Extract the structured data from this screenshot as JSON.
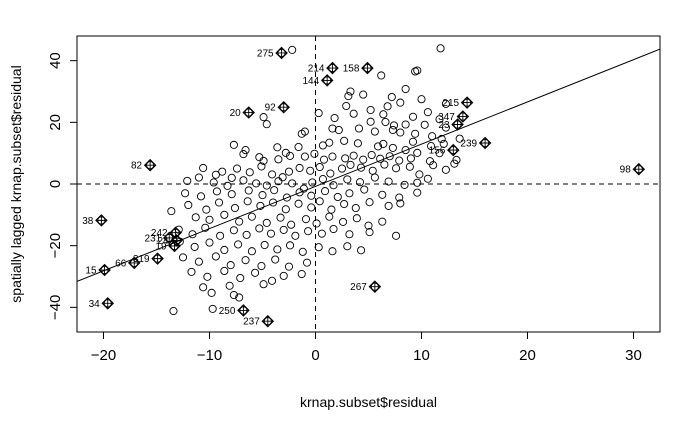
{
  "chart_data": {
    "type": "scatter",
    "title": "",
    "xlabel": "krnap.subset$residual",
    "ylabel": "spatially lagged krnap.subset$residual",
    "xlim": [
      -22.5,
      32.5
    ],
    "ylim": [
      -48,
      48
    ],
    "x_ticks": [
      -20,
      -10,
      0,
      10,
      20,
      30
    ],
    "y_ticks": [
      -40,
      -20,
      0,
      20,
      40
    ],
    "grid": false,
    "legend": "none",
    "reference_lines": {
      "vertical_x": 0,
      "horizontal_y": 0,
      "style": "dashed"
    },
    "regression_line": {
      "slope": 1.37,
      "intercept": -0.77
    },
    "labeled_points": [
      {
        "label": "275",
        "x": -3.2,
        "y": 42.5
      },
      {
        "label": "214",
        "x": 1.6,
        "y": 37.6
      },
      {
        "label": "158",
        "x": 4.9,
        "y": 37.6
      },
      {
        "label": "144",
        "x": 1.1,
        "y": 33.6
      },
      {
        "label": "20",
        "x": -6.3,
        "y": 23.2
      },
      {
        "label": "92",
        "x": -3.0,
        "y": 24.9
      },
      {
        "label": "215",
        "x": 14.3,
        "y": 26.4
      },
      {
        "label": "347",
        "x": 13.9,
        "y": 21.9
      },
      {
        "label": "23",
        "x": 13.4,
        "y": 19.3
      },
      {
        "label": "156",
        "x": 13.0,
        "y": 11.0
      },
      {
        "label": "239",
        "x": 16.0,
        "y": 13.3
      },
      {
        "label": "98",
        "x": 30.5,
        "y": 4.8
      },
      {
        "label": "82",
        "x": -15.6,
        "y": 6.1
      },
      {
        "label": "38",
        "x": -20.2,
        "y": -11.8
      },
      {
        "label": "242",
        "x": -13.2,
        "y": -15.8
      },
      {
        "label": "231",
        "x": -13.8,
        "y": -17.5
      },
      {
        "label": "24",
        "x": -13.1,
        "y": -18.3
      },
      {
        "label": "19",
        "x": -13.3,
        "y": -20.1
      },
      {
        "label": "319",
        "x": -14.9,
        "y": -24.2
      },
      {
        "label": "66",
        "x": -17.1,
        "y": -25.6
      },
      {
        "label": "15",
        "x": -19.9,
        "y": -27.9
      },
      {
        "label": "34",
        "x": -19.6,
        "y": -38.7
      },
      {
        "label": "250",
        "x": -6.8,
        "y": -41.0
      },
      {
        "label": "237",
        "x": -4.5,
        "y": -44.5
      },
      {
        "label": "267",
        "x": 5.6,
        "y": -33.3
      }
    ],
    "points": [
      [
        11.8,
        44.0
      ],
      [
        -2.2,
        43.5
      ],
      [
        9.4,
        36.5
      ],
      [
        9.6,
        36.8
      ],
      [
        6.2,
        35.2
      ],
      [
        3.3,
        30.0
      ],
      [
        3.1,
        28.5
      ],
      [
        4.5,
        29.0
      ],
      [
        7.2,
        28.2
      ],
      [
        8.5,
        30.8
      ],
      [
        10.0,
        27.5
      ],
      [
        12.3,
        26.0
      ],
      [
        8.0,
        26.4
      ],
      [
        6.8,
        25.2
      ],
      [
        5.2,
        24.0
      ],
      [
        2.9,
        25.3
      ],
      [
        -4.9,
        21.7
      ],
      [
        -4.6,
        19.4
      ],
      [
        0.3,
        23.0
      ],
      [
        1.8,
        21.4
      ],
      [
        3.6,
        22.8
      ],
      [
        6.4,
        22.6
      ],
      [
        9.2,
        21.8
      ],
      [
        10.6,
        23.3
      ],
      [
        11.7,
        21.0
      ],
      [
        5.2,
        20.2
      ],
      [
        6.6,
        20.1
      ],
      [
        7.4,
        19.0
      ],
      [
        8.5,
        19.3
      ],
      [
        10.3,
        19.2
      ],
      [
        12.3,
        18.3
      ],
      [
        -1.3,
        16.3
      ],
      [
        -1.0,
        17.0
      ],
      [
        1.6,
        18.0
      ],
      [
        2.2,
        17.5
      ],
      [
        4.1,
        18.0
      ],
      [
        5.6,
        17.0
      ],
      [
        7.3,
        17.5
      ],
      [
        8.0,
        16.7
      ],
      [
        9.4,
        16.3
      ],
      [
        11.0,
        15.5
      ],
      [
        11.9,
        14.6
      ],
      [
        13.6,
        14.7
      ],
      [
        -7.7,
        12.7
      ],
      [
        -6.6,
        11.0
      ],
      [
        -3.6,
        11.9
      ],
      [
        -2.8,
        10.1
      ],
      [
        -1.6,
        12.0
      ],
      [
        0.7,
        12.5
      ],
      [
        1.3,
        13.4
      ],
      [
        2.7,
        14.0
      ],
      [
        4.0,
        13.2
      ],
      [
        5.9,
        12.2
      ],
      [
        6.4,
        13.0
      ],
      [
        7.3,
        11.7
      ],
      [
        8.5,
        11.0
      ],
      [
        9.2,
        13.7
      ],
      [
        10.9,
        12.3
      ],
      [
        12.1,
        13.0
      ],
      [
        -6.8,
        9.7
      ],
      [
        -5.3,
        8.7
      ],
      [
        -4.9,
        7.5
      ],
      [
        -3.5,
        8.0
      ],
      [
        -2.4,
        9.1
      ],
      [
        -1.0,
        8.9
      ],
      [
        -0.1,
        9.8
      ],
      [
        0.8,
        7.9
      ],
      [
        1.6,
        8.9
      ],
      [
        2.8,
        8.3
      ],
      [
        3.6,
        9.2
      ],
      [
        4.5,
        7.9
      ],
      [
        5.3,
        9.4
      ],
      [
        6.1,
        8.2
      ],
      [
        7.0,
        9.0
      ],
      [
        7.9,
        7.6
      ],
      [
        9.0,
        8.3
      ],
      [
        9.6,
        10.1
      ],
      [
        10.8,
        7.4
      ],
      [
        11.7,
        10.0
      ],
      [
        13.3,
        7.8
      ],
      [
        -10.6,
        5.2
      ],
      [
        -9.4,
        3.0
      ],
      [
        -8.8,
        4.0
      ],
      [
        -7.9,
        2.0
      ],
      [
        -7.4,
        5.0
      ],
      [
        -6.2,
        3.8
      ],
      [
        -5.1,
        5.7
      ],
      [
        -4.1,
        3.1
      ],
      [
        -3.1,
        2.2
      ],
      [
        -2.5,
        4.0
      ],
      [
        -1.5,
        5.2
      ],
      [
        -0.5,
        4.3
      ],
      [
        0.4,
        5.5
      ],
      [
        1.4,
        3.4
      ],
      [
        2.5,
        5.0
      ],
      [
        3.3,
        6.2
      ],
      [
        4.3,
        5.3
      ],
      [
        5.4,
        4.3
      ],
      [
        6.5,
        6.3
      ],
      [
        7.6,
        5.1
      ],
      [
        8.9,
        5.6
      ],
      [
        9.8,
        3.1
      ],
      [
        11.1,
        6.1
      ],
      [
        12.3,
        4.6
      ],
      [
        13.1,
        6.6
      ],
      [
        -12.1,
        1.0
      ],
      [
        -11.0,
        2.1
      ],
      [
        -9.6,
        0.5
      ],
      [
        -8.3,
        -0.6
      ],
      [
        -6.8,
        1.2
      ],
      [
        -5.6,
        0.2
      ],
      [
        -4.6,
        -0.5
      ],
      [
        -3.5,
        0.9
      ],
      [
        -2.2,
        0.2
      ],
      [
        -1.1,
        -1.5
      ],
      [
        -0.3,
        0.5
      ],
      [
        0.7,
        1.6
      ],
      [
        1.7,
        -0.4
      ],
      [
        3.0,
        1.5
      ],
      [
        4.2,
        0.6
      ],
      [
        5.6,
        2.1
      ],
      [
        6.9,
        0.8
      ],
      [
        8.4,
        -0.3
      ],
      [
        9.6,
        0.4
      ],
      [
        10.6,
        1.7
      ],
      [
        -12.3,
        -3.0
      ],
      [
        -10.8,
        -4.0
      ],
      [
        -9.3,
        -2.4
      ],
      [
        -7.9,
        -3.3
      ],
      [
        -6.3,
        -2.1
      ],
      [
        -5.0,
        -3.6
      ],
      [
        -3.9,
        -2.0
      ],
      [
        -2.7,
        -4.4
      ],
      [
        -1.5,
        -2.7
      ],
      [
        -0.4,
        -3.8
      ],
      [
        0.9,
        -2.3
      ],
      [
        2.1,
        -4.2
      ],
      [
        3.2,
        -3.0
      ],
      [
        4.6,
        -1.8
      ],
      [
        6.3,
        -3.5
      ],
      [
        7.9,
        -4.4
      ],
      [
        9.6,
        -2.8
      ],
      [
        -13.6,
        -8.8
      ],
      [
        -12.0,
        -6.8
      ],
      [
        -10.3,
        -8.3
      ],
      [
        -9.1,
        -6.0
      ],
      [
        -7.6,
        -7.8
      ],
      [
        -6.4,
        -5.6
      ],
      [
        -5.2,
        -7.1
      ],
      [
        -4.0,
        -6.0
      ],
      [
        -2.8,
        -8.2
      ],
      [
        -1.6,
        -6.4
      ],
      [
        -0.4,
        -7.6
      ],
      [
        0.4,
        -5.6
      ],
      [
        1.5,
        -8.3
      ],
      [
        2.7,
        -6.5
      ],
      [
        3.8,
        -7.8
      ],
      [
        5.1,
        -5.9
      ],
      [
        6.9,
        -7.1
      ],
      [
        8.0,
        -6.3
      ],
      [
        -11.3,
        -10.8
      ],
      [
        -10.0,
        -11.6
      ],
      [
        -8.6,
        -10.0
      ],
      [
        -7.2,
        -12.2
      ],
      [
        -6.0,
        -10.6
      ],
      [
        -4.6,
        -12.6
      ],
      [
        -3.3,
        -10.9
      ],
      [
        -2.3,
        -13.2
      ],
      [
        -0.9,
        -11.4
      ],
      [
        0.1,
        -12.8
      ],
      [
        1.3,
        -10.6
      ],
      [
        2.6,
        -12.3
      ],
      [
        3.9,
        -11.1
      ],
      [
        5.0,
        -13.5
      ],
      [
        6.3,
        -12.2
      ],
      [
        -12.9,
        -14.8
      ],
      [
        -11.6,
        -16.3
      ],
      [
        -10.4,
        -14.2
      ],
      [
        -9.0,
        -16.8
      ],
      [
        -7.7,
        -15.0
      ],
      [
        -6.5,
        -16.5
      ],
      [
        -5.3,
        -14.4
      ],
      [
        -4.2,
        -16.1
      ],
      [
        -3.0,
        -14.9
      ],
      [
        -1.9,
        -16.8
      ],
      [
        -0.7,
        -15.3
      ],
      [
        0.6,
        -16.1
      ],
      [
        1.7,
        -14.6
      ],
      [
        3.2,
        -16.3
      ],
      [
        5.1,
        -15.6
      ],
      [
        7.6,
        -16.8
      ],
      [
        -12.8,
        -18.7
      ],
      [
        -11.4,
        -20.4
      ],
      [
        -10.0,
        -19.0
      ],
      [
        -8.6,
        -21.4
      ],
      [
        -7.3,
        -19.6
      ],
      [
        -6.0,
        -21.8
      ],
      [
        -4.8,
        -19.8
      ],
      [
        -3.6,
        -21.2
      ],
      [
        -2.4,
        -19.9
      ],
      [
        -1.2,
        -22.0
      ],
      [
        0.3,
        -20.5
      ],
      [
        1.6,
        -21.8
      ],
      [
        3.0,
        -20.2
      ],
      [
        4.3,
        -21.5
      ],
      [
        -12.5,
        -23.8
      ],
      [
        -11.0,
        -25.2
      ],
      [
        -9.4,
        -23.5
      ],
      [
        -8.0,
        -26.3
      ],
      [
        -6.6,
        -24.7
      ],
      [
        -5.1,
        -26.6
      ],
      [
        -3.8,
        -24.5
      ],
      [
        -2.5,
        -26.8
      ],
      [
        -0.8,
        -25.5
      ],
      [
        -11.7,
        -28.5
      ],
      [
        -10.2,
        -30.1
      ],
      [
        -8.6,
        -28.2
      ],
      [
        -7.1,
        -30.5
      ],
      [
        -5.7,
        -28.8
      ],
      [
        -4.1,
        -31.4
      ],
      [
        -3.0,
        -29.8
      ],
      [
        -1.3,
        -29.2
      ],
      [
        -10.6,
        -33.5
      ],
      [
        -9.8,
        -35.3
      ],
      [
        -8.1,
        -33.0
      ],
      [
        -7.7,
        -36.0
      ],
      [
        -7.2,
        -36.8
      ],
      [
        -13.4,
        -41.2
      ],
      [
        -9.7,
        -40.5
      ],
      [
        -4.9,
        -32.5
      ]
    ]
  }
}
